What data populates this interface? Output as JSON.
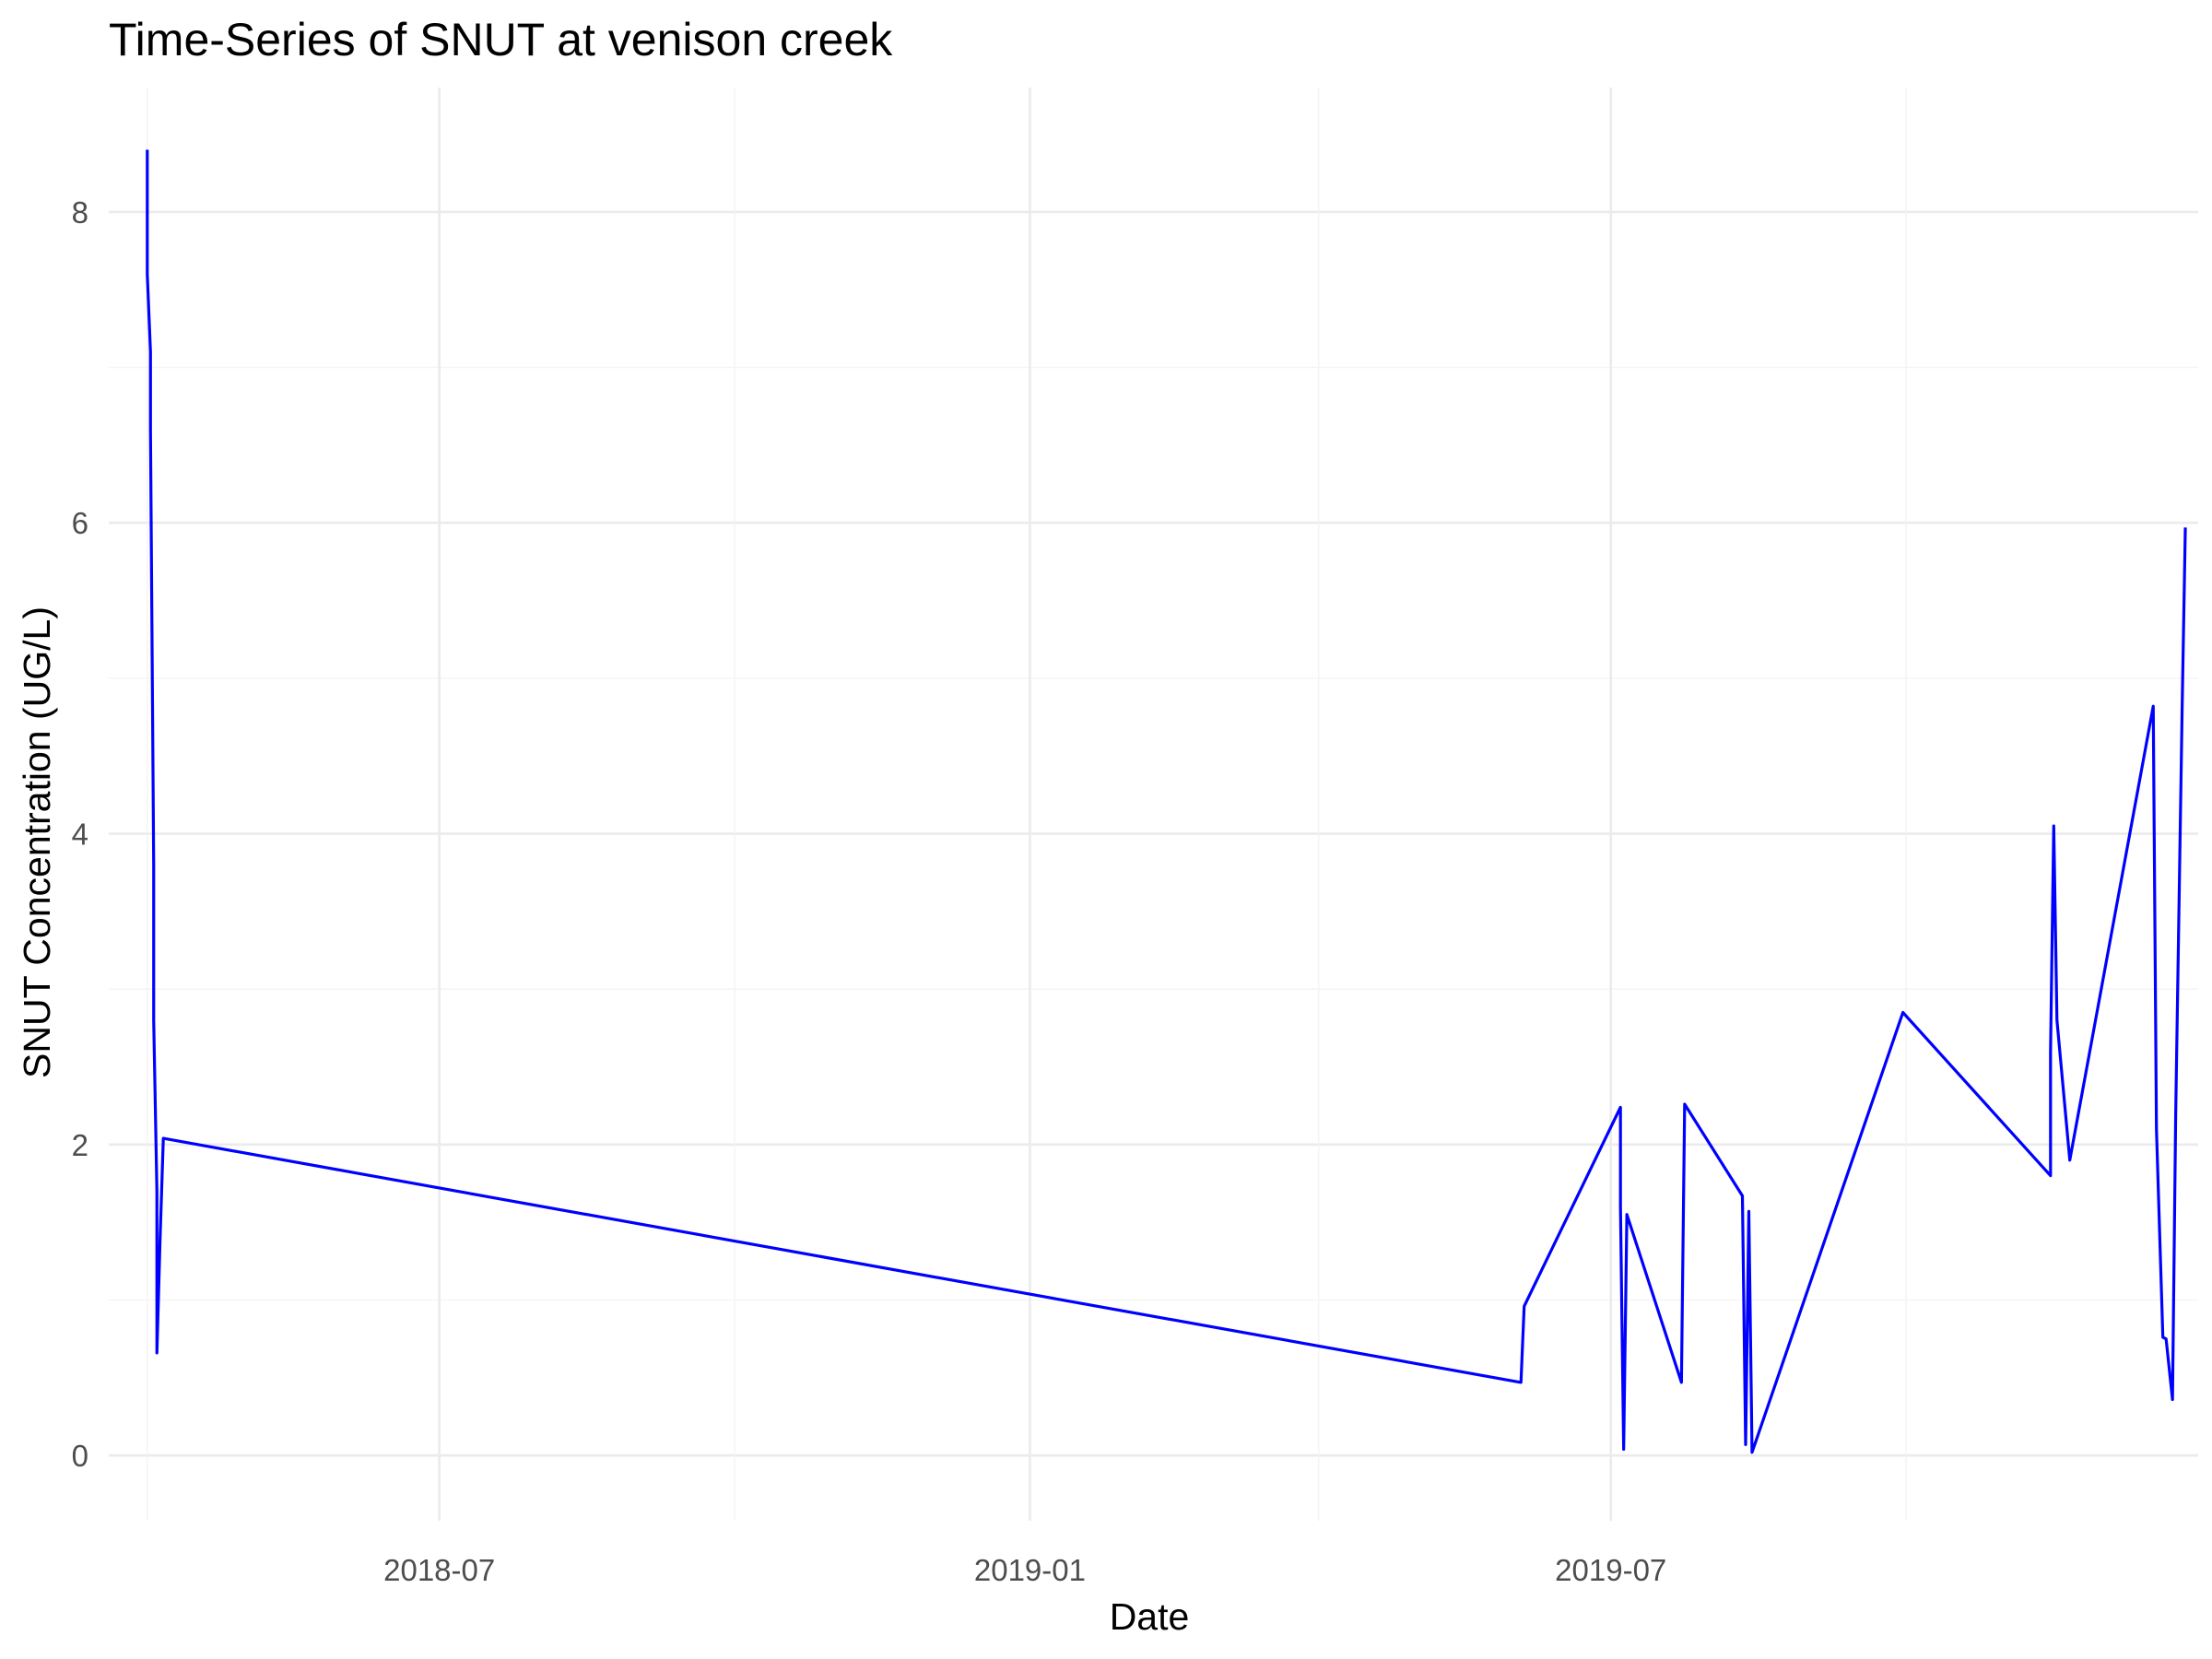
{
  "chart_data": {
    "type": "line",
    "title": "Time-Series of SNUT at venison creek",
    "xlabel": "Date",
    "ylabel": "SNUT Concentration (UG/L)",
    "x_tick_labels": [
      "2018-07",
      "2019-01",
      "2019-07"
    ],
    "y_tick_labels": [
      "0",
      "2",
      "4",
      "6",
      "8"
    ],
    "xlim": [
      "2018-03-20",
      "2019-12-31"
    ],
    "ylim": [
      -0.42,
      8.8
    ],
    "grid": true,
    "legend": "none",
    "line_color": "#0000ff",
    "series": [
      {
        "points": [
          [
            "2018-04-01",
            8.4
          ],
          [
            "2018-04-01",
            7.6
          ],
          [
            "2018-04-02",
            7.1
          ],
          [
            "2018-04-02",
            6.6
          ],
          [
            "2018-04-03",
            3.8
          ],
          [
            "2018-04-03",
            2.8
          ],
          [
            "2018-04-04",
            1.7
          ],
          [
            "2018-04-04",
            0.66
          ],
          [
            "2018-04-05",
            1.4
          ],
          [
            "2018-04-06",
            2.04
          ],
          [
            "2019-06-03",
            0.47
          ],
          [
            "2019-06-04",
            0.96
          ],
          [
            "2019-07-04",
            2.24
          ],
          [
            "2019-07-04",
            1.6
          ],
          [
            "2019-07-05",
            0.04
          ],
          [
            "2019-07-06",
            1.55
          ],
          [
            "2019-07-23",
            0.47
          ],
          [
            "2019-07-24",
            2.26
          ],
          [
            "2019-08-11",
            1.67
          ],
          [
            "2019-08-12",
            0.07
          ],
          [
            "2019-08-13",
            1.57
          ],
          [
            "2019-08-14",
            0.02
          ],
          [
            "2019-09-30",
            2.85
          ],
          [
            "2019-11-15",
            1.8
          ],
          [
            "2019-11-15",
            2.6
          ],
          [
            "2019-11-16",
            4.05
          ],
          [
            "2019-11-17",
            2.8
          ],
          [
            "2019-11-21",
            1.9
          ],
          [
            "2019-12-17",
            4.82
          ],
          [
            "2019-12-18",
            2.1
          ],
          [
            "2019-12-20",
            0.76
          ],
          [
            "2019-12-21",
            0.75
          ],
          [
            "2019-12-23",
            0.36
          ],
          [
            "2019-12-24",
            2.2
          ],
          [
            "2019-12-25",
            3.5
          ],
          [
            "2019-12-26",
            4.8
          ],
          [
            "2019-12-27",
            5.97
          ]
        ]
      }
    ]
  }
}
